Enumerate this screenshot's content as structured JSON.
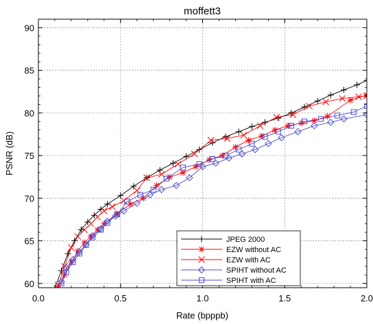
{
  "chart_data": {
    "type": "line",
    "title": "moffett3",
    "xlabel": "Rate (bpppb)",
    "ylabel": "PSNR (dB)",
    "xlim": [
      0.0,
      2.0
    ],
    "ylim": [
      59.5,
      91.0
    ],
    "xticks": [
      0.0,
      0.5,
      1.0,
      1.5,
      2.0
    ],
    "xtick_labels": [
      "0.0",
      "0.5",
      "1.0",
      "1.5",
      "2.0"
    ],
    "yticks": [
      60,
      65,
      70,
      75,
      80,
      85,
      90
    ],
    "ytick_labels": [
      "60",
      "65",
      "70",
      "75",
      "80",
      "85",
      "90"
    ],
    "grid": true,
    "legend_position": "bottom-right",
    "series": [
      {
        "name": "JPEG 2000",
        "color": "#000000",
        "marker": "plus",
        "x": [
          0.1,
          0.14,
          0.18,
          0.22,
          0.26,
          0.3,
          0.34,
          0.38,
          0.42,
          0.5,
          0.58,
          0.66,
          0.74,
          0.82,
          0.9,
          0.98,
          1.06,
          1.14,
          1.22,
          1.3,
          1.38,
          1.46,
          1.54,
          1.62,
          1.7,
          1.78,
          1.86,
          1.94,
          2.0
        ],
        "y": [
          59.5,
          61.5,
          63.5,
          65.0,
          66.3,
          67.2,
          68.0,
          68.7,
          69.3,
          70.3,
          71.4,
          72.4,
          73.3,
          74.1,
          74.9,
          75.7,
          76.5,
          77.2,
          77.8,
          78.4,
          78.9,
          79.4,
          80.0,
          80.7,
          81.4,
          82.1,
          82.7,
          83.3,
          83.8
        ]
      },
      {
        "name": "EZW without AC",
        "color": "#ff0000",
        "marker": "asterisk",
        "x": [
          0.12,
          0.16,
          0.2,
          0.24,
          0.28,
          0.32,
          0.36,
          0.4,
          0.48,
          0.56,
          0.64,
          0.72,
          0.8,
          0.88,
          0.96,
          1.04,
          1.12,
          1.2,
          1.28,
          1.36,
          1.44,
          1.52,
          1.6,
          1.68,
          1.76,
          1.9,
          2.0
        ],
        "y": [
          59.5,
          61.0,
          62.5,
          63.8,
          64.8,
          65.5,
          66.3,
          67.0,
          68.2,
          69.3,
          70.0,
          71.5,
          72.5,
          73.0,
          73.7,
          74.5,
          75.0,
          76.0,
          76.8,
          77.3,
          78.0,
          78.5,
          78.8,
          79.1,
          79.6,
          81.5,
          82.1
        ]
      },
      {
        "name": "EZW with AC",
        "color": "#ff0000",
        "marker": "x",
        "x": [
          0.12,
          0.16,
          0.2,
          0.24,
          0.28,
          0.32,
          0.36,
          0.4,
          0.45,
          0.52,
          0.6,
          0.66,
          0.75,
          0.85,
          0.95,
          1.05,
          1.15,
          1.25,
          1.35,
          1.45,
          1.55,
          1.65,
          1.75,
          1.85,
          1.95,
          2.0
        ],
        "y": [
          59.8,
          62.0,
          64.2,
          65.5,
          66.3,
          67.0,
          67.8,
          68.5,
          69.0,
          69.7,
          70.9,
          72.4,
          72.8,
          74.0,
          75.2,
          76.8,
          77.0,
          77.4,
          78.5,
          79.5,
          79.8,
          80.8,
          81.3,
          81.7,
          81.9,
          82.0
        ]
      },
      {
        "name": "SPIHT without AC",
        "color": "#4b4bd0",
        "marker": "diamond",
        "x": [
          0.14,
          0.17,
          0.21,
          0.25,
          0.29,
          0.33,
          0.38,
          0.42,
          0.47,
          0.52,
          0.6,
          0.68,
          0.75,
          0.84,
          0.92,
          1.0,
          1.08,
          1.16,
          1.24,
          1.32,
          1.4,
          1.48,
          1.58,
          1.68,
          1.78,
          1.86,
          2.0
        ],
        "y": [
          60.2,
          61.8,
          62.8,
          63.7,
          64.6,
          65.6,
          66.4,
          67.3,
          67.9,
          68.5,
          69.4,
          70.4,
          71.0,
          71.5,
          72.4,
          73.7,
          74.1,
          74.7,
          75.2,
          75.7,
          76.4,
          77.1,
          77.8,
          78.5,
          78.9,
          79.3,
          79.8
        ]
      },
      {
        "name": "SPIHT with AC",
        "color": "#4b4bd0",
        "marker": "square",
        "x": [
          0.14,
          0.17,
          0.21,
          0.25,
          0.29,
          0.33,
          0.38,
          0.42,
          0.48,
          0.54,
          0.62,
          0.7,
          0.78,
          0.88,
          0.98,
          1.06,
          1.14,
          1.22,
          1.3,
          1.38,
          1.46,
          1.54,
          1.62,
          1.72,
          1.82,
          1.92,
          2.0
        ],
        "y": [
          60.0,
          61.3,
          62.5,
          63.5,
          64.5,
          65.4,
          66.3,
          67.1,
          68.1,
          69.6,
          70.4,
          71.0,
          72.3,
          73.6,
          74.0,
          74.6,
          75.0,
          75.7,
          76.4,
          77.2,
          77.8,
          78.5,
          79.0,
          79.3,
          79.7,
          80.1,
          80.8
        ]
      }
    ]
  }
}
